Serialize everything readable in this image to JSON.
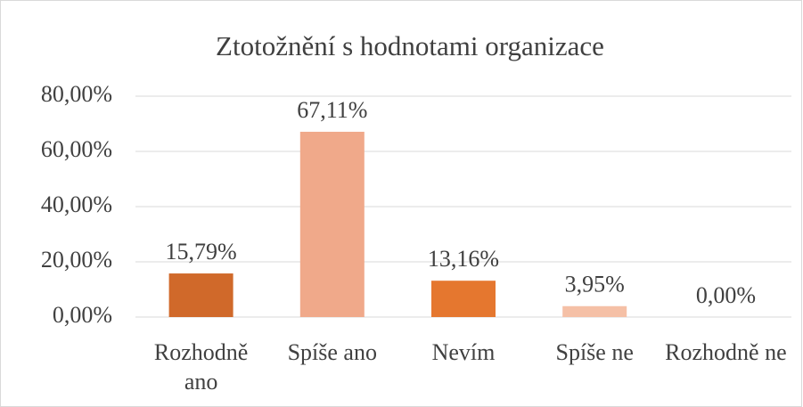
{
  "chart_data": {
    "type": "bar",
    "title": "Ztotožnění s hodnotami organizace",
    "categories": [
      "Rozhodně ano",
      "Spíše ano",
      "Nevím",
      "Spíše ne",
      "Rozhodně ne"
    ],
    "values": [
      15.79,
      67.11,
      13.16,
      3.95,
      0
    ],
    "value_labels": [
      "15,79%",
      "67,11%",
      "13,16%",
      "3,95%",
      "0,00%"
    ],
    "colors": [
      "#d0692a",
      "#f0a98a",
      "#e5772f",
      "#f5c0a6",
      "#e5772f"
    ],
    "ylim": [
      0,
      80
    ],
    "yticks": [
      {
        "value": 0,
        "label": "0,00%"
      },
      {
        "value": 20,
        "label": "20,00%"
      },
      {
        "value": 40,
        "label": "40,00%"
      },
      {
        "value": 60,
        "label": "60,00%"
      },
      {
        "value": 80,
        "label": "80,00%"
      }
    ],
    "grid": true
  }
}
